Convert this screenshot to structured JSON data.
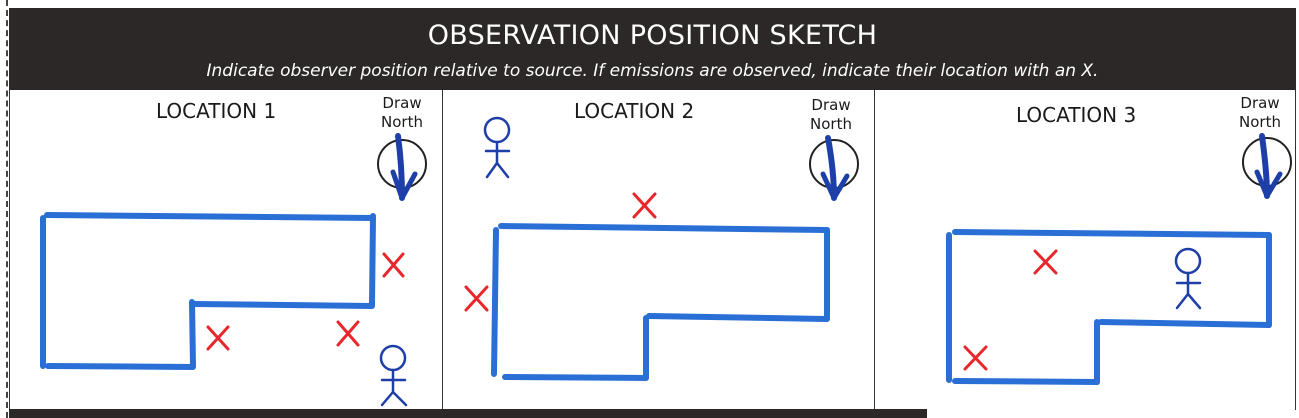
{
  "header": {
    "title": "OBSERVATION POSITION SKETCH",
    "subtitle": "Indicate observer position relative to source. If emissions are observed, indicate their location with an X."
  },
  "panels": [
    {
      "title": "LOCATION 1",
      "north_line1": "Draw",
      "north_line2": "North"
    },
    {
      "title": "LOCATION 2",
      "north_line1": "Draw",
      "north_line2": "North"
    },
    {
      "title": "LOCATION 3",
      "north_line1": "Draw",
      "north_line2": "North"
    }
  ],
  "colors": {
    "header_bg": "#2b2827",
    "sketch_blue": "#2a6fd6",
    "figure_blue": "#1f3fa8",
    "emission_red": "#e8262b"
  },
  "icons": [
    "north-arrow-icon",
    "observer-icon",
    "emission-x-icon"
  ]
}
